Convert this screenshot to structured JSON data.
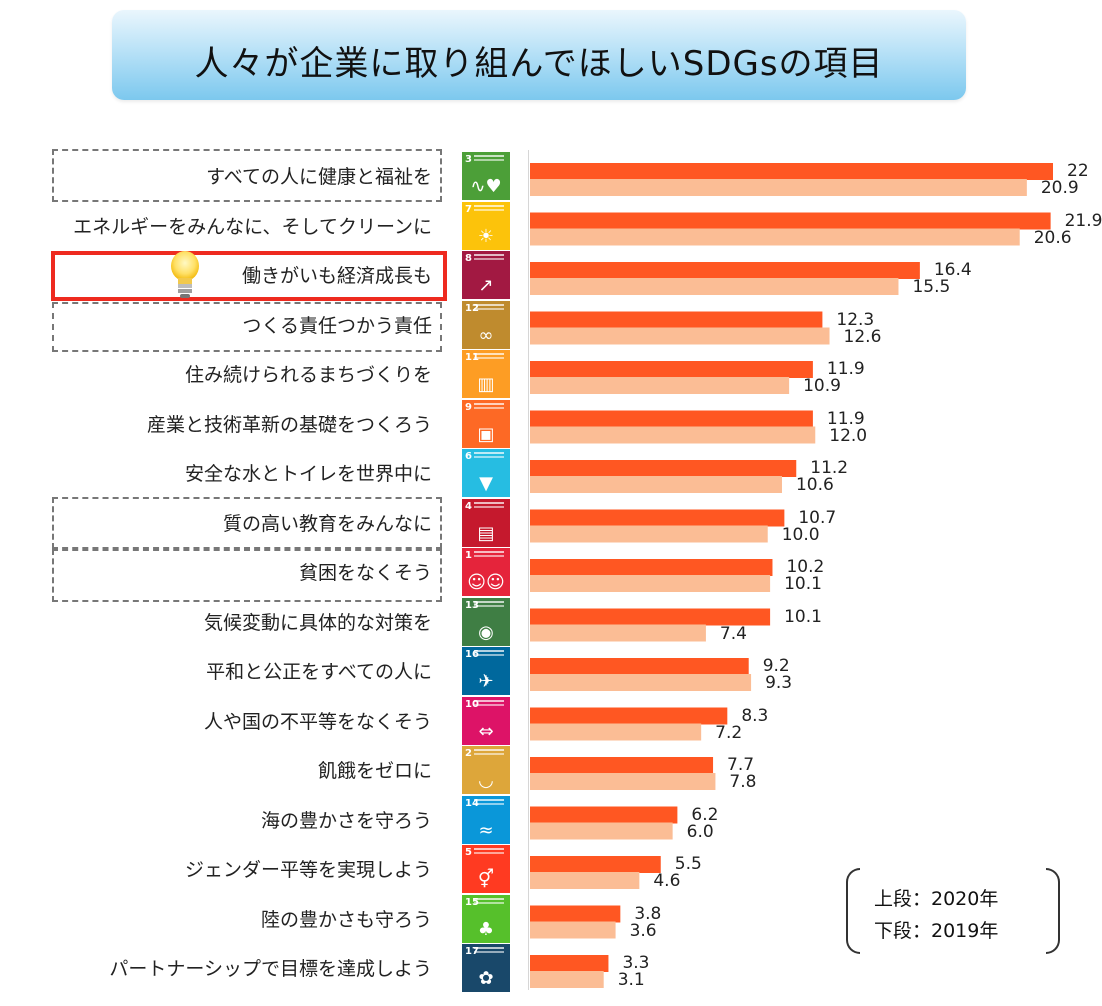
{
  "title": "人々が企業に取り組んでほしいSDGsの項目",
  "legend": {
    "line1": "上段：2020年",
    "line2": "下段：2019年"
  },
  "colors": {
    "bar2020": "#ff5722",
    "bar2019": "#fbbd95"
  },
  "chart_data": {
    "type": "bar",
    "orientation": "horizontal",
    "title": "人々が企業に取り組んでほしいSDGsの項目",
    "categories": [
      "すべての人に健康と福祉を",
      "エネルギーをみんなに、そしてクリーンに",
      "働きがいも経済成長も",
      "つくる責任つかう責任",
      "住み続けられるまちづくりを",
      "産業と技術革新の基礎をつくろう",
      "安全な水とトイレを世界中に",
      "質の高い教育をみんなに",
      "貧困をなくそう",
      "気候変動に具体的な対策を",
      "平和と公正をすべての人に",
      "人や国の不平等をなくそう",
      "飢餓をゼロに",
      "海の豊かさを守ろう",
      "ジェンダー平等を実現しよう",
      "陸の豊かさも守ろう",
      "パートナーシップで目標を達成しよう"
    ],
    "value_labels_2020": [
      "22",
      "21.9",
      "16.4",
      "12.3",
      "11.9",
      "11.9",
      "11.2",
      "10.7",
      "10.2",
      "10.1",
      "9.2",
      "8.3",
      "7.7",
      "6.2",
      "5.5",
      "3.8",
      "3.3"
    ],
    "value_labels_2019": [
      "20.9",
      "20.6",
      "15.5",
      "12.6",
      "10.9",
      "12.0",
      "10.6",
      "10.0",
      "10.1",
      "7.4",
      "9.3",
      "7.2",
      "7.8",
      "6.0",
      "4.6",
      "3.6",
      "3.1"
    ],
    "series": [
      {
        "name": "上段：2020年",
        "values": [
          22.0,
          21.9,
          16.4,
          12.3,
          11.9,
          11.9,
          11.2,
          10.7,
          10.2,
          10.1,
          9.2,
          8.3,
          7.7,
          6.2,
          5.5,
          3.8,
          3.3
        ]
      },
      {
        "name": "下段：2019年",
        "values": [
          20.9,
          20.6,
          15.5,
          12.6,
          10.9,
          12.0,
          10.6,
          10.0,
          10.1,
          7.4,
          9.3,
          7.2,
          7.8,
          6.0,
          4.6,
          3.6,
          3.1
        ]
      }
    ],
    "sdg_icons": [
      {
        "num": "3",
        "color": "#4c9f38",
        "icon": "heartbeat-icon"
      },
      {
        "num": "7",
        "color": "#fcc30b",
        "icon": "sun-icon"
      },
      {
        "num": "8",
        "color": "#a21942",
        "icon": "growth-chart-icon"
      },
      {
        "num": "12",
        "color": "#bf8b2e",
        "icon": "infinity-icon"
      },
      {
        "num": "11",
        "color": "#fd9d24",
        "icon": "city-buildings-icon"
      },
      {
        "num": "9",
        "color": "#fd6925",
        "icon": "cubes-icon"
      },
      {
        "num": "6",
        "color": "#26bde2",
        "icon": "water-drop-icon"
      },
      {
        "num": "4",
        "color": "#c5192d",
        "icon": "book-icon"
      },
      {
        "num": "1",
        "color": "#e5243b",
        "icon": "family-icon"
      },
      {
        "num": "13",
        "color": "#3f7e44",
        "icon": "earth-eye-icon"
      },
      {
        "num": "16",
        "color": "#00689d",
        "icon": "dove-icon"
      },
      {
        "num": "10",
        "color": "#dd1367",
        "icon": "equality-arrows-icon"
      },
      {
        "num": "2",
        "color": "#dda63a",
        "icon": "bowl-icon"
      },
      {
        "num": "14",
        "color": "#0a97d9",
        "icon": "fish-icon"
      },
      {
        "num": "5",
        "color": "#ff3a21",
        "icon": "gender-symbol-icon"
      },
      {
        "num": "15",
        "color": "#56c02b",
        "icon": "tree-icon"
      },
      {
        "num": "17",
        "color": "#19486a",
        "icon": "flower-ring-icon"
      }
    ],
    "xlim": [
      0,
      22
    ],
    "grid": false,
    "legend_position": "bottom-right",
    "highlighted_category": "働きがいも経済成長も"
  }
}
